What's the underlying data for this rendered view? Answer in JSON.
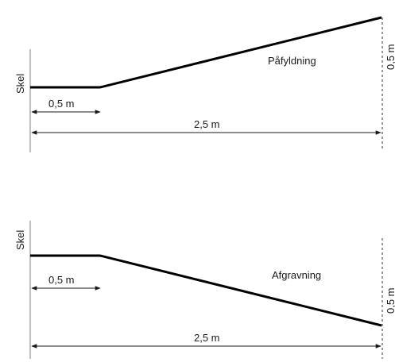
{
  "top": {
    "boundary_label": "Skel",
    "fill_label": "Påfyldning",
    "dim_short": "0,5 m",
    "dim_long": "2,5 m",
    "height_label": "0,5 m"
  },
  "bottom": {
    "boundary_label": "Skel",
    "cut_label": "Afgravning",
    "dim_short": "0,5 m",
    "dim_long": "2,5 m",
    "height_label": "0,5 m"
  },
  "colors": {
    "line": "#000000",
    "guide": "#808080"
  }
}
